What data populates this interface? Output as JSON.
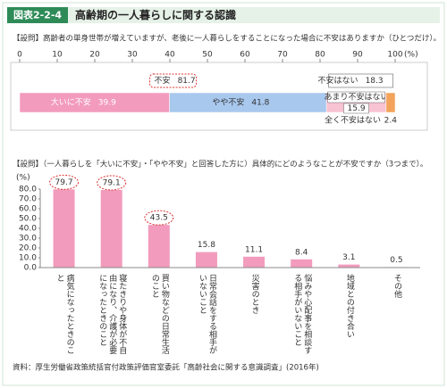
{
  "header": {
    "figure_number": "図表2-2-4",
    "title": "高齢期の一人暮らしに関する認識"
  },
  "chart_data": [
    {
      "type": "stacked_bar",
      "subtitle": "【設問】高齢者の単身世帯が増えていますが、老後に一人暮らしをすることになった場合に不安はありますか（ひとつだけ）。",
      "unit": "(%)",
      "xlim": [
        0,
        100
      ],
      "xticks": [
        0,
        10,
        20,
        30,
        40,
        50,
        60,
        70,
        80,
        90,
        100
      ],
      "series": [
        {
          "name": "大いに不安",
          "color": "#f29bbd",
          "values": [
            39.9
          ]
        },
        {
          "name": "やや不安",
          "color": "#a9c8ee",
          "values": [
            41.8
          ]
        },
        {
          "name": "あまり不安はない",
          "color": "#f8c3d3",
          "values": [
            15.9
          ]
        },
        {
          "name": "全く不安はない",
          "color": "#f3a35a",
          "values": [
            2.4
          ]
        }
      ],
      "annotations": [
        {
          "label": "不安",
          "value": 81.7
        },
        {
          "label": "不安はない",
          "value": 18.3
        }
      ]
    },
    {
      "type": "bar",
      "subtitle": "【設問】（一人暮らしを「大いに不安」・「やや不安」と回答した方に）具体的にどのようなことが不安ですか（3つまで）。",
      "y_unit": "(%)",
      "categories": [
        "病気になったときのこと",
        "寝たきりや身体が不自由になり、介護が必要になったときのこと",
        "買い物などの日常生活のこと",
        "日常会話をする相手がいないこと",
        "災害のとき",
        "悩みや心配事を相談する相手がいないこと",
        "地域との付き合い",
        "その他"
      ],
      "values": [
        79.7,
        79.1,
        43.5,
        15.8,
        11.1,
        8.4,
        3.1,
        0.5
      ],
      "color": "#f29bbd",
      "highlight": [
        true,
        true,
        true,
        false,
        false,
        false,
        false,
        false
      ],
      "ylim": [
        0,
        80
      ],
      "yticks": [
        {
          "value": 0,
          "label": "0.0"
        },
        {
          "value": 10,
          "label": "10.0"
        },
        {
          "value": 20,
          "label": "20.0"
        },
        {
          "value": 30,
          "label": "30.0"
        },
        {
          "value": 40,
          "label": "40.0"
        },
        {
          "value": 50,
          "label": "50.0"
        },
        {
          "value": 60,
          "label": "60.0"
        },
        {
          "value": 70,
          "label": "70.0"
        },
        {
          "value": 80,
          "label": "80.0"
        }
      ]
    }
  ],
  "source": "資料：厚生労働省政策統括官付政策評価官室委託「高齢社会に関する意識調査」(2016年)"
}
